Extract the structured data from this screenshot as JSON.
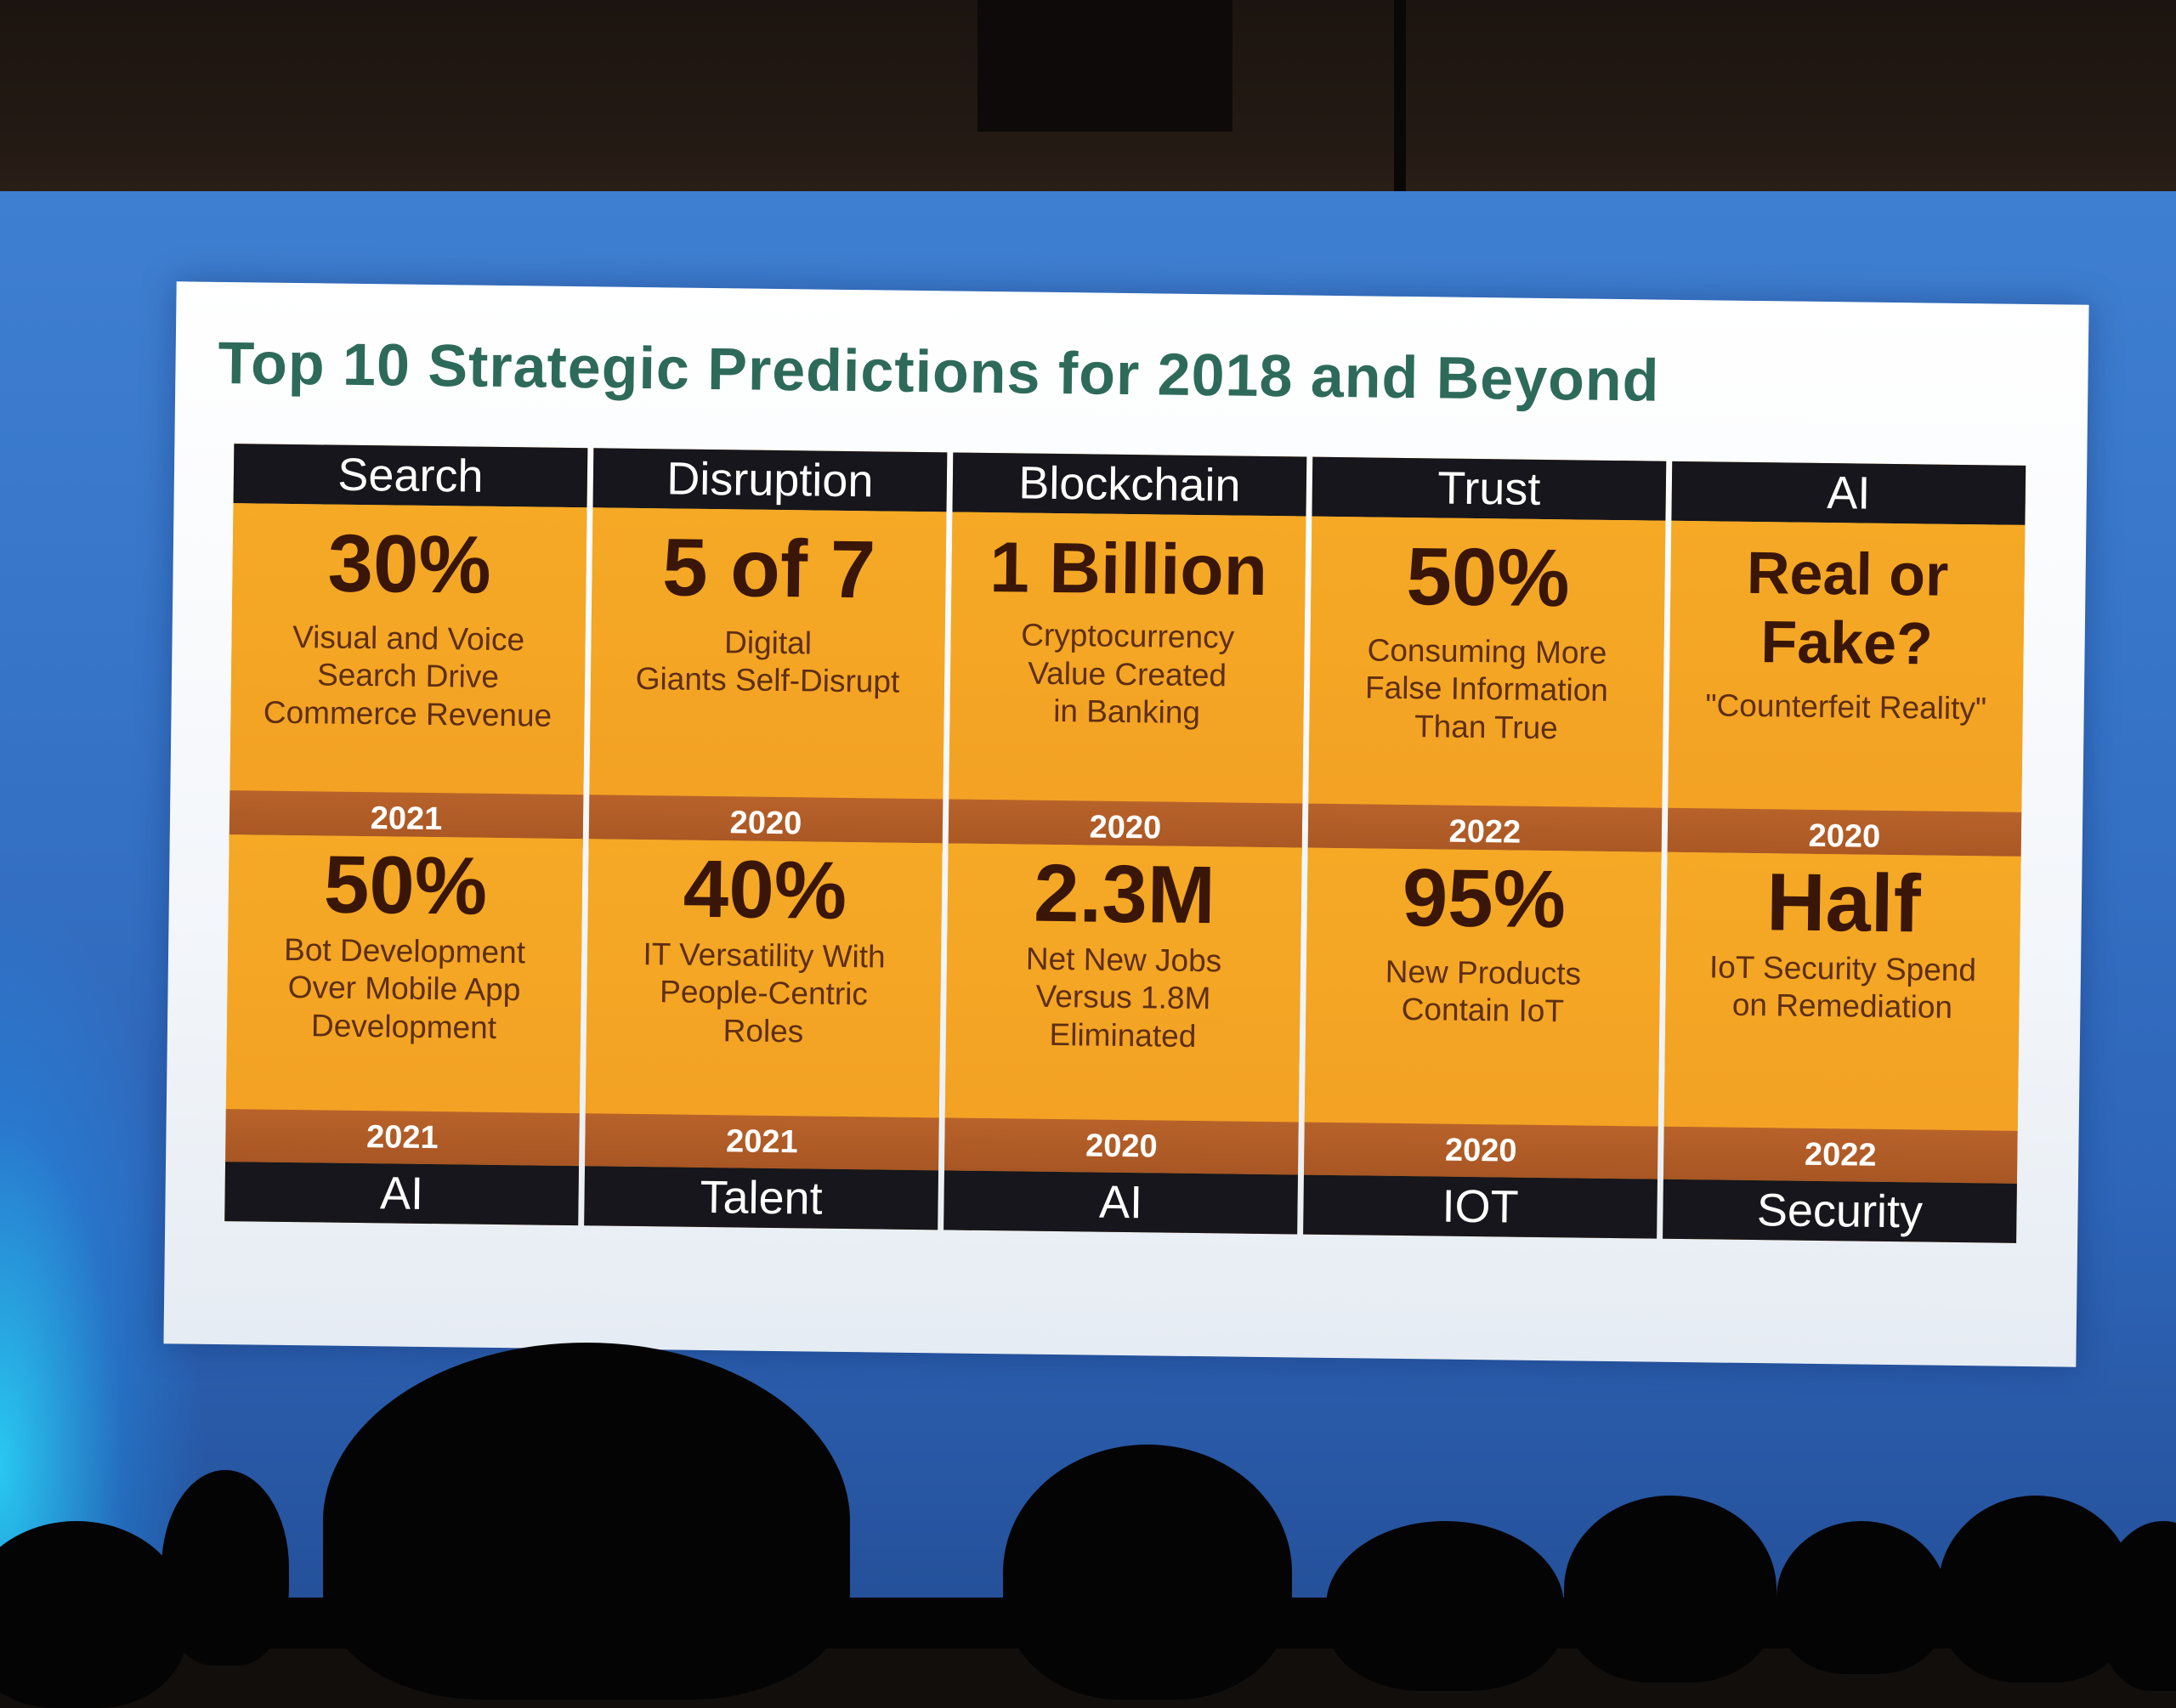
{
  "slide": {
    "title": "Top 10 Strategic Predictions for 2018 and Beyond",
    "top_row": [
      {
        "category": "Search",
        "stat": "30%",
        "desc": "Visual and Voice\nSearch Drive\nCommerce Revenue",
        "year": "2021"
      },
      {
        "category": "Disruption",
        "stat": "5 of 7",
        "desc": "Digital\nGiants Self-Disrupt",
        "year": "2020"
      },
      {
        "category": "Blockchain",
        "stat": "1 Billion",
        "desc": "Cryptocurrency\nValue Created\nin Banking",
        "year": "2020"
      },
      {
        "category": "Trust",
        "stat": "50%",
        "desc": "Consuming More\nFalse Information\nThan True",
        "year": "2022"
      },
      {
        "category": "AI",
        "stat": "Real or\nFake?",
        "desc": "\"Counterfeit Reality\"",
        "year": "2020"
      }
    ],
    "bottom_row": [
      {
        "category": "AI",
        "stat": "50%",
        "desc": "Bot Development\nOver Mobile App\nDevelopment",
        "year": "2021"
      },
      {
        "category": "Talent",
        "stat": "40%",
        "desc": "IT Versatility With\nPeople-Centric\nRoles",
        "year": "2021"
      },
      {
        "category": "AI",
        "stat": "2.3M",
        "desc": "Net New Jobs\nVersus 1.8M\nEliminated",
        "year": "2020"
      },
      {
        "category": "IOT",
        "stat": "95%",
        "desc": "New Products\nContain IoT",
        "year": "2020"
      },
      {
        "category": "Security",
        "stat": "Half",
        "desc": "IoT Security Spend\non Remediation",
        "year": "2022"
      }
    ]
  },
  "colors": {
    "card_fill": "#f4a626",
    "header_band": "#16161c",
    "year_band": "#b8622a",
    "title_text": "#2e6a5a",
    "wall": "#3674c8"
  }
}
